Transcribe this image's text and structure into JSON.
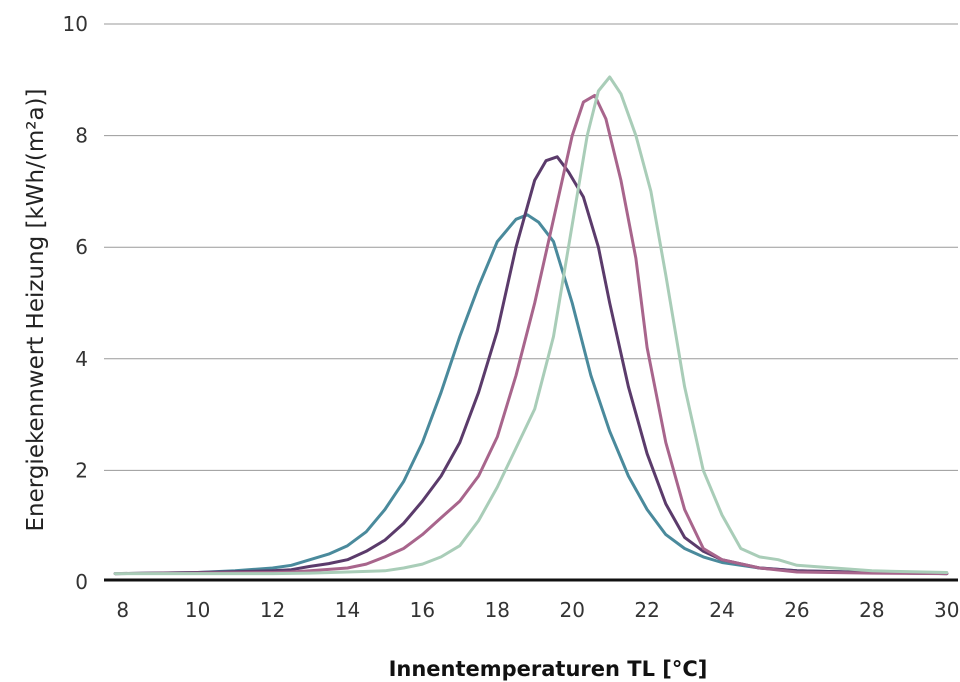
{
  "chart_data": {
    "type": "line",
    "xlabel": "Innentemperaturen TL [°C]",
    "ylabel": "Energiekennwert Heizung [kWh/(m²a)]",
    "xlim": [
      7.5,
      30.3
    ],
    "ylim": [
      0,
      10
    ],
    "x_ticks": [
      8,
      10,
      12,
      14,
      16,
      18,
      20,
      22,
      24,
      26,
      28,
      30
    ],
    "y_ticks": [
      0,
      2,
      4,
      6,
      8,
      10
    ],
    "x_tick_labels": [
      "8",
      "10",
      "12",
      "14",
      "16",
      "18",
      "20",
      "22",
      "24",
      "26",
      "28",
      "30"
    ],
    "y_tick_labels": [
      "0",
      "2",
      "4",
      "6",
      "8",
      "10"
    ],
    "grid": "horizontal",
    "series": [
      {
        "color": "#4a8a9c",
        "points": [
          [
            7.8,
            0.15
          ],
          [
            9,
            0.16
          ],
          [
            10,
            0.17
          ],
          [
            11,
            0.2
          ],
          [
            12,
            0.25
          ],
          [
            12.5,
            0.3
          ],
          [
            13,
            0.4
          ],
          [
            13.5,
            0.5
          ],
          [
            14,
            0.65
          ],
          [
            14.5,
            0.9
          ],
          [
            15,
            1.3
          ],
          [
            15.5,
            1.8
          ],
          [
            16,
            2.5
          ],
          [
            16.5,
            3.4
          ],
          [
            17,
            4.4
          ],
          [
            17.5,
            5.3
          ],
          [
            18,
            6.1
          ],
          [
            18.5,
            6.5
          ],
          [
            18.8,
            6.58
          ],
          [
            19.1,
            6.45
          ],
          [
            19.5,
            6.1
          ],
          [
            20,
            5.0
          ],
          [
            20.5,
            3.7
          ],
          [
            21,
            2.7
          ],
          [
            21.5,
            1.9
          ],
          [
            22,
            1.3
          ],
          [
            22.5,
            0.85
          ],
          [
            23,
            0.6
          ],
          [
            23.5,
            0.45
          ],
          [
            24,
            0.35
          ],
          [
            25,
            0.25
          ],
          [
            26,
            0.2
          ],
          [
            28,
            0.17
          ],
          [
            30,
            0.15
          ]
        ]
      },
      {
        "color": "#5b3b6b",
        "points": [
          [
            7.8,
            0.15
          ],
          [
            10,
            0.17
          ],
          [
            12,
            0.2
          ],
          [
            12.5,
            0.22
          ],
          [
            13,
            0.28
          ],
          [
            13.5,
            0.33
          ],
          [
            14,
            0.4
          ],
          [
            14.5,
            0.55
          ],
          [
            15,
            0.75
          ],
          [
            15.5,
            1.05
          ],
          [
            16,
            1.45
          ],
          [
            16.5,
            1.9
          ],
          [
            17,
            2.5
          ],
          [
            17.5,
            3.4
          ],
          [
            18,
            4.5
          ],
          [
            18.5,
            6.0
          ],
          [
            19,
            7.2
          ],
          [
            19.3,
            7.55
          ],
          [
            19.6,
            7.62
          ],
          [
            19.9,
            7.35
          ],
          [
            20.3,
            6.9
          ],
          [
            20.7,
            6.0
          ],
          [
            21,
            5.0
          ],
          [
            21.5,
            3.5
          ],
          [
            22,
            2.3
          ],
          [
            22.5,
            1.4
          ],
          [
            23,
            0.8
          ],
          [
            23.5,
            0.55
          ],
          [
            24,
            0.4
          ],
          [
            25,
            0.25
          ],
          [
            26,
            0.2
          ],
          [
            28,
            0.17
          ],
          [
            30,
            0.15
          ]
        ]
      },
      {
        "color": "#a8658c",
        "points": [
          [
            7.8,
            0.15
          ],
          [
            10,
            0.16
          ],
          [
            12,
            0.17
          ],
          [
            12.5,
            0.18
          ],
          [
            13,
            0.2
          ],
          [
            14,
            0.25
          ],
          [
            14.5,
            0.32
          ],
          [
            15,
            0.45
          ],
          [
            15.5,
            0.6
          ],
          [
            16,
            0.85
          ],
          [
            16.5,
            1.15
          ],
          [
            17,
            1.45
          ],
          [
            17.5,
            1.9
          ],
          [
            18,
            2.6
          ],
          [
            18.5,
            3.7
          ],
          [
            19,
            5.0
          ],
          [
            19.5,
            6.5
          ],
          [
            20,
            8.0
          ],
          [
            20.3,
            8.6
          ],
          [
            20.6,
            8.72
          ],
          [
            20.9,
            8.3
          ],
          [
            21.3,
            7.2
          ],
          [
            21.7,
            5.8
          ],
          [
            22,
            4.2
          ],
          [
            22.5,
            2.5
          ],
          [
            23,
            1.3
          ],
          [
            23.5,
            0.6
          ],
          [
            24,
            0.4
          ],
          [
            25,
            0.25
          ],
          [
            26,
            0.18
          ],
          [
            28,
            0.16
          ],
          [
            30,
            0.15
          ]
        ]
      },
      {
        "color": "#a9cdb8",
        "points": [
          [
            7.8,
            0.15
          ],
          [
            10,
            0.15
          ],
          [
            12,
            0.15
          ],
          [
            13,
            0.16
          ],
          [
            14,
            0.18
          ],
          [
            15,
            0.2
          ],
          [
            15.5,
            0.25
          ],
          [
            16,
            0.32
          ],
          [
            16.5,
            0.45
          ],
          [
            17,
            0.65
          ],
          [
            17.5,
            1.1
          ],
          [
            18,
            1.7
          ],
          [
            18.5,
            2.4
          ],
          [
            19,
            3.1
          ],
          [
            19.5,
            4.4
          ],
          [
            20,
            6.4
          ],
          [
            20.4,
            8.0
          ],
          [
            20.7,
            8.8
          ],
          [
            21,
            9.05
          ],
          [
            21.3,
            8.75
          ],
          [
            21.7,
            8.0
          ],
          [
            22.1,
            7.0
          ],
          [
            22.5,
            5.5
          ],
          [
            23,
            3.5
          ],
          [
            23.5,
            2.0
          ],
          [
            24,
            1.2
          ],
          [
            24.5,
            0.6
          ],
          [
            25,
            0.45
          ],
          [
            25.5,
            0.4
          ],
          [
            26,
            0.3
          ],
          [
            28,
            0.2
          ],
          [
            30,
            0.17
          ]
        ]
      }
    ]
  }
}
